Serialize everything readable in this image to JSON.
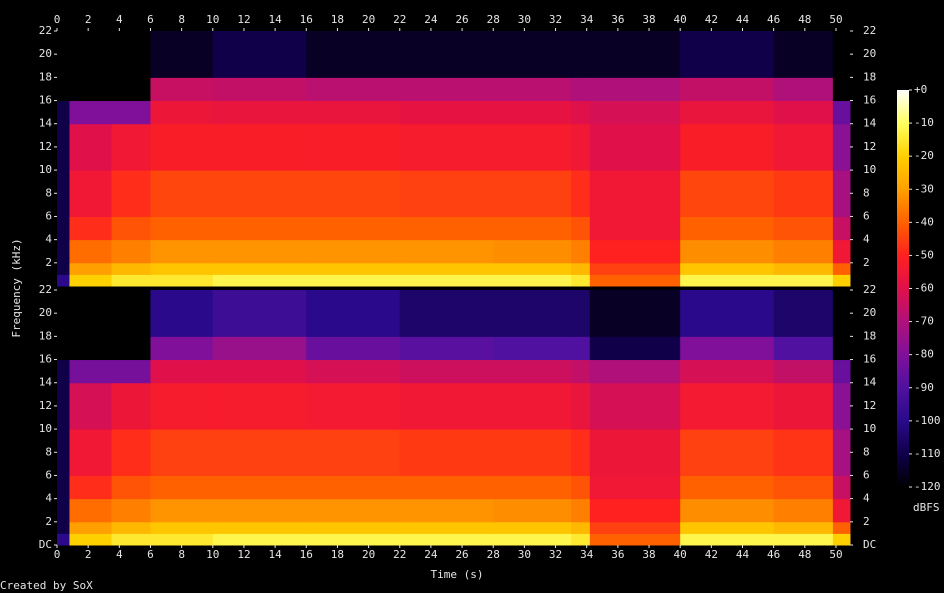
{
  "chart_data": {
    "type": "spectrogram",
    "x_label": "Time (s)",
    "y_label": "Frequency (kHz)",
    "colorbar_label": "dBFS",
    "credit": "Created by SoX",
    "xlim": [
      0,
      50.9
    ],
    "xticks": [
      0,
      2,
      4,
      6,
      8,
      10,
      12,
      14,
      16,
      18,
      20,
      22,
      24,
      26,
      28,
      30,
      32,
      34,
      36,
      38,
      40,
      42,
      44,
      46,
      48,
      50
    ],
    "time_bins": [
      0,
      0.8,
      3.5,
      6,
      10,
      16,
      22,
      28,
      33,
      34.2,
      40,
      46,
      49.8,
      50.9
    ],
    "freq_bins": [
      0,
      1,
      2,
      4,
      6,
      10,
      14,
      16,
      18,
      22
    ],
    "zlim": [
      -120,
      0
    ],
    "zticks": [
      {
        "value": 0,
        "label": "+0"
      },
      -10,
      -20,
      -30,
      -40,
      -50,
      -60,
      -70,
      -80,
      -90,
      -100,
      -110,
      -120
    ],
    "colorscale": [
      {
        "value": -120,
        "color": "#000000"
      },
      {
        "value": -110,
        "color": "#10004a"
      },
      {
        "value": -100,
        "color": "#2a0a8a"
      },
      {
        "value": -90,
        "color": "#5010a0"
      },
      {
        "value": -80,
        "color": "#80109a"
      },
      {
        "value": -70,
        "color": "#b0107a"
      },
      {
        "value": -60,
        "color": "#e0104a"
      },
      {
        "value": -50,
        "color": "#ff2020"
      },
      {
        "value": -40,
        "color": "#ff6000"
      },
      {
        "value": -30,
        "color": "#ffa000"
      },
      {
        "value": -20,
        "color": "#ffd000"
      },
      {
        "value": -10,
        "color": "#ffff60"
      },
      {
        "value": 0,
        "color": "#ffffff"
      }
    ],
    "channels": [
      {
        "ylim": [
          0,
          22
        ],
        "yticks": [
          2,
          4,
          6,
          8,
          10,
          12,
          14,
          16,
          18,
          20,
          22
        ],
        "z": [
          [
            -100,
            -20,
            -15,
            -15,
            -12,
            -12,
            -12,
            -12,
            -15,
            -40,
            -12,
            -12,
            -20
          ],
          [
            -110,
            -30,
            -25,
            -22,
            -22,
            -22,
            -22,
            -22,
            -25,
            -45,
            -22,
            -25,
            -40
          ],
          [
            -110,
            -38,
            -35,
            -32,
            -32,
            -32,
            -32,
            -33,
            -35,
            -50,
            -33,
            -35,
            -55
          ],
          [
            -110,
            -48,
            -42,
            -40,
            -40,
            -40,
            -40,
            -40,
            -42,
            -55,
            -40,
            -42,
            -65
          ],
          [
            -110,
            -55,
            -48,
            -44,
            -44,
            -44,
            -45,
            -45,
            -48,
            -55,
            -44,
            -46,
            -72
          ],
          [
            -110,
            -60,
            -55,
            -52,
            -52,
            -52,
            -53,
            -53,
            -55,
            -60,
            -52,
            -55,
            -78
          ],
          [
            -110,
            -80,
            -80,
            -56,
            -57,
            -57,
            -58,
            -58,
            -60,
            -62,
            -57,
            -60,
            -85
          ],
          [
            -120,
            -120,
            -120,
            -65,
            -66,
            -68,
            -68,
            -68,
            -70,
            -70,
            -66,
            -70,
            -120
          ],
          [
            -120,
            -120,
            -120,
            -115,
            -110,
            -115,
            -115,
            -115,
            -115,
            -115,
            -110,
            -115,
            -120
          ]
        ]
      },
      {
        "ylim": [
          0,
          22
        ],
        "yticks": [
          {
            "value": 0,
            "label": "DC"
          },
          2,
          4,
          6,
          8,
          10,
          12,
          14,
          16,
          18,
          20,
          22
        ],
        "z": [
          [
            -100,
            -20,
            -15,
            -15,
            -12,
            -12,
            -12,
            -12,
            -15,
            -40,
            -12,
            -12,
            -20
          ],
          [
            -110,
            -30,
            -25,
            -22,
            -22,
            -22,
            -22,
            -22,
            -25,
            -45,
            -22,
            -25,
            -40
          ],
          [
            -110,
            -38,
            -35,
            -32,
            -32,
            -32,
            -32,
            -33,
            -35,
            -50,
            -33,
            -35,
            -55
          ],
          [
            -110,
            -48,
            -42,
            -40,
            -40,
            -40,
            -40,
            -40,
            -42,
            -55,
            -40,
            -42,
            -65
          ],
          [
            -110,
            -55,
            -48,
            -45,
            -45,
            -45,
            -46,
            -46,
            -48,
            -56,
            -45,
            -47,
            -72
          ],
          [
            -110,
            -62,
            -56,
            -53,
            -53,
            -54,
            -55,
            -55,
            -57,
            -62,
            -54,
            -56,
            -78
          ],
          [
            -110,
            -82,
            -82,
            -60,
            -60,
            -62,
            -64,
            -64,
            -66,
            -70,
            -62,
            -66,
            -85
          ],
          [
            -120,
            -120,
            -120,
            -80,
            -75,
            -85,
            -88,
            -90,
            -90,
            -110,
            -80,
            -90,
            -120
          ],
          [
            -120,
            -120,
            -120,
            -100,
            -95,
            -100,
            -105,
            -105,
            -105,
            -115,
            -100,
            -105,
            -120
          ]
        ]
      }
    ]
  }
}
